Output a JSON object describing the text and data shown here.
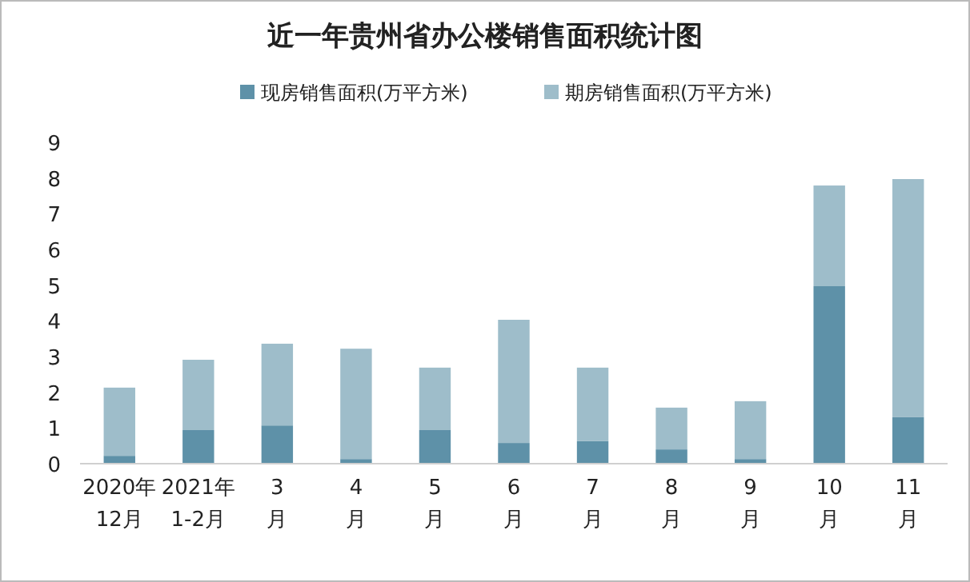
{
  "chart_data": {
    "type": "bar",
    "title": "近一年贵州省办公楼销售面积统计图",
    "stacked": true,
    "categories": [
      "2020年\n12月",
      "2021年\n1-2月",
      "3\n月",
      "4\n月",
      "5\n月",
      "6\n月",
      "7\n月",
      "8\n月",
      "9\n月",
      "10\n月",
      "11\n月"
    ],
    "series": [
      {
        "name": "现房销售面积(万平方米)",
        "color": "#5e91a8",
        "values": [
          0.22,
          0.94,
          1.07,
          0.13,
          0.94,
          0.58,
          0.63,
          0.4,
          0.13,
          4.97,
          1.3
        ]
      },
      {
        "name": "期房销售面积(万平方米)",
        "color": "#9ebdca",
        "values": [
          1.91,
          1.97,
          2.29,
          3.09,
          1.75,
          3.45,
          2.06,
          1.17,
          1.62,
          2.82,
          6.67
        ]
      }
    ],
    "ylim": [
      0,
      9
    ],
    "yticks": [
      0,
      1,
      2,
      3,
      4,
      5,
      6,
      7,
      8,
      9
    ],
    "grid": false,
    "legend": "top"
  }
}
